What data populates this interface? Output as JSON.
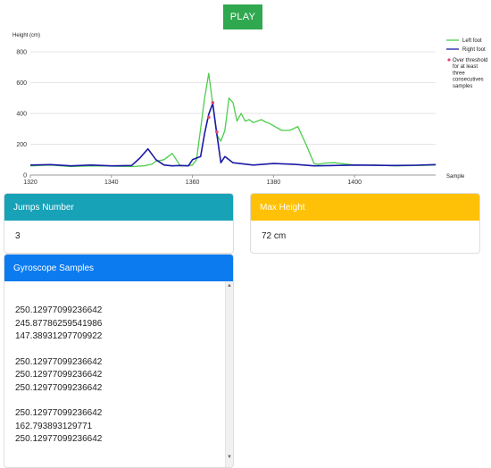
{
  "play_button": {
    "label": "PLAY"
  },
  "chart_data": {
    "type": "line",
    "ylabel": "Height (cm)",
    "xlabel": "Sample",
    "xlim": [
      1320,
      1420
    ],
    "ylim": [
      0,
      800
    ],
    "x_ticks": [
      1320,
      1340,
      1360,
      1380,
      1400
    ],
    "y_ticks": [
      0,
      200,
      400,
      600,
      800
    ],
    "grid": "horizontal",
    "legend": "right",
    "series": [
      {
        "name": "Left foot",
        "color": "#4ccd4c",
        "x": [
          1320,
          1325,
          1330,
          1335,
          1340,
          1345,
          1348,
          1350,
          1351,
          1353,
          1355,
          1357,
          1359,
          1360,
          1361,
          1362,
          1363,
          1364,
          1365,
          1366,
          1367,
          1368,
          1369,
          1370,
          1371,
          1372,
          1373,
          1374,
          1375,
          1376,
          1377,
          1378,
          1379,
          1380,
          1382,
          1384,
          1386,
          1388,
          1390,
          1391,
          1393,
          1395,
          1400,
          1405,
          1410,
          1415,
          1420
        ],
        "y": [
          60,
          65,
          55,
          60,
          58,
          55,
          60,
          70,
          90,
          100,
          140,
          60,
          62,
          65,
          100,
          300,
          500,
          660,
          460,
          260,
          220,
          290,
          500,
          470,
          350,
          400,
          350,
          360,
          340,
          350,
          360,
          345,
          335,
          320,
          290,
          290,
          315,
          200,
          75,
          70,
          78,
          80,
          65,
          65,
          60,
          62,
          65
        ]
      },
      {
        "name": "Right foot",
        "color": "#1a1aa6",
        "x": [
          1320,
          1325,
          1330,
          1335,
          1340,
          1345,
          1347,
          1349,
          1351,
          1353,
          1355,
          1357,
          1359,
          1360,
          1362,
          1363,
          1364,
          1365,
          1366,
          1367,
          1368,
          1370,
          1375,
          1380,
          1385,
          1390,
          1395,
          1400,
          1405,
          1410,
          1415,
          1420
        ],
        "y": [
          65,
          68,
          60,
          65,
          60,
          62,
          110,
          170,
          100,
          65,
          60,
          62,
          60,
          100,
          120,
          270,
          395,
          465,
          270,
          80,
          120,
          80,
          65,
          75,
          70,
          60,
          62,
          65,
          63,
          62,
          64,
          68
        ]
      }
    ],
    "threshold_points": {
      "name": "Over threshold for at least three consecutives samples",
      "color": "#e0457a",
      "x": [
        1364,
        1365,
        1366
      ],
      "y": [
        375,
        470,
        280
      ]
    }
  },
  "cards": {
    "jumps": {
      "title": "Jumps Number",
      "value": "3"
    },
    "max_height": {
      "title": "Max Height",
      "value": "72 cm"
    },
    "gyro": {
      "title": "Gyroscope Samples",
      "groups": [
        [
          "250.12977099236642",
          "245.87786259541986",
          "147.38931297709922"
        ],
        [
          "250.12977099236642",
          "250.12977099236642",
          "250.12977099236642"
        ],
        [
          "250.12977099236642",
          "162.793893129771",
          "250.12977099236642"
        ]
      ]
    }
  }
}
